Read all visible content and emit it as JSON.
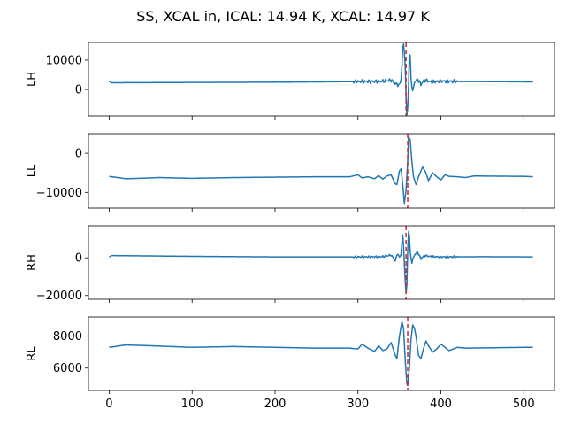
{
  "figure": {
    "title": "SS, XCAL in, ICAL: 14.94 K, XCAL: 14.97 K",
    "line_color": "#1f77b4",
    "marker_color": "#d62728"
  },
  "chart_data": [
    {
      "type": "line",
      "ylabel": "LH",
      "xlim": [
        -25,
        537
      ],
      "ylim": [
        -9000,
        16000
      ],
      "yticks": [
        0,
        10000
      ],
      "xticks": [
        0,
        100,
        200,
        300,
        400,
        500
      ],
      "show_xtick_labels": false,
      "baseline": {
        "start": 2300,
        "end": 2700
      },
      "peak_index": 358,
      "marker_x": 358,
      "keypoints": [
        [
          0,
          2800
        ],
        [
          3,
          2300
        ],
        [
          100,
          2400
        ],
        [
          200,
          2500
        ],
        [
          300,
          2700
        ],
        [
          330,
          2800
        ],
        [
          340,
          3200
        ],
        [
          345,
          2000
        ],
        [
          350,
          1500
        ],
        [
          352,
          3500
        ],
        [
          353,
          8000
        ],
        [
          354,
          14000
        ],
        [
          355,
          15000
        ],
        [
          356,
          13000
        ],
        [
          357,
          8000
        ],
        [
          358,
          -3000
        ],
        [
          359,
          -8500
        ],
        [
          360,
          -6000
        ],
        [
          361,
          1000
        ],
        [
          362,
          12000
        ],
        [
          363,
          11000
        ],
        [
          364,
          4000
        ],
        [
          366,
          -1000
        ],
        [
          368,
          2500
        ],
        [
          372,
          3500
        ],
        [
          376,
          1800
        ],
        [
          380,
          3200
        ],
        [
          390,
          2500
        ],
        [
          400,
          2900
        ],
        [
          420,
          2700
        ],
        [
          450,
          2700
        ],
        [
          511,
          2600
        ]
      ],
      "ripple": {
        "from": 295,
        "to": 420,
        "amp": 700
      }
    },
    {
      "type": "line",
      "ylabel": "LL",
      "xlim": [
        -25,
        537
      ],
      "ylim": [
        -14000,
        5000
      ],
      "yticks": [
        -10000,
        0
      ],
      "xticks": [
        0,
        100,
        200,
        300,
        400,
        500
      ],
      "show_xtick_labels": false,
      "peak_index": 360,
      "marker_x": 360,
      "keypoints": [
        [
          0,
          -5900
        ],
        [
          20,
          -6500
        ],
        [
          50,
          -6300
        ],
        [
          60,
          -6200
        ],
        [
          100,
          -6400
        ],
        [
          150,
          -6200
        ],
        [
          200,
          -6100
        ],
        [
          250,
          -6000
        ],
        [
          290,
          -6000
        ],
        [
          300,
          -5500
        ],
        [
          305,
          -6300
        ],
        [
          312,
          -6000
        ],
        [
          320,
          -6500
        ],
        [
          325,
          -5700
        ],
        [
          330,
          -6600
        ],
        [
          335,
          -5800
        ],
        [
          340,
          -5500
        ],
        [
          345,
          -7800
        ],
        [
          347,
          -8000
        ],
        [
          350,
          -4500
        ],
        [
          352,
          -4000
        ],
        [
          354,
          -8000
        ],
        [
          356,
          -12800
        ],
        [
          358,
          -9500
        ],
        [
          360,
          -2000
        ],
        [
          361,
          4200
        ],
        [
          363,
          3500
        ],
        [
          365,
          -2000
        ],
        [
          367,
          -6000
        ],
        [
          370,
          -8000
        ],
        [
          373,
          -6000
        ],
        [
          378,
          -3500
        ],
        [
          382,
          -5000
        ],
        [
          385,
          -7000
        ],
        [
          390,
          -5000
        ],
        [
          395,
          -6000
        ],
        [
          400,
          -6800
        ],
        [
          405,
          -5500
        ],
        [
          410,
          -5900
        ],
        [
          420,
          -6000
        ],
        [
          430,
          -6200
        ],
        [
          440,
          -5800
        ],
        [
          500,
          -5900
        ],
        [
          511,
          -6000
        ]
      ]
    },
    {
      "type": "line",
      "ylabel": "RH",
      "xlim": [
        -25,
        537
      ],
      "ylim": [
        -22000,
        17000
      ],
      "yticks": [
        -20000,
        0
      ],
      "xticks": [
        0,
        100,
        200,
        300,
        400,
        500
      ],
      "show_xtick_labels": false,
      "peak_index": 358,
      "marker_x": 358,
      "keypoints": [
        [
          0,
          500
        ],
        [
          3,
          1200
        ],
        [
          100,
          800
        ],
        [
          200,
          500
        ],
        [
          300,
          500
        ],
        [
          330,
          600
        ],
        [
          340,
          1500
        ],
        [
          345,
          -1500
        ],
        [
          348,
          2500
        ],
        [
          350,
          0
        ],
        [
          352,
          2000
        ],
        [
          353,
          8000
        ],
        [
          354,
          12000
        ],
        [
          355,
          6000
        ],
        [
          356,
          -3000
        ],
        [
          357,
          -12000
        ],
        [
          358,
          -19500
        ],
        [
          359,
          -14000
        ],
        [
          360,
          4000
        ],
        [
          361,
          14000
        ],
        [
          362,
          12000
        ],
        [
          363,
          3000
        ],
        [
          365,
          -2500
        ],
        [
          368,
          1500
        ],
        [
          372,
          3000
        ],
        [
          376,
          -500
        ],
        [
          380,
          1200
        ],
        [
          390,
          600
        ],
        [
          400,
          500
        ],
        [
          450,
          600
        ],
        [
          511,
          500
        ]
      ],
      "ripple": {
        "from": 295,
        "to": 420,
        "amp": 600
      }
    },
    {
      "type": "line",
      "ylabel": "RL",
      "xlim": [
        -25,
        537
      ],
      "ylim": [
        4600,
        9200
      ],
      "yticks": [
        6000,
        8000
      ],
      "xticks": [
        0,
        100,
        200,
        300,
        400,
        500
      ],
      "show_xtick_labels": true,
      "peak_index": 360,
      "marker_x": 360,
      "keypoints": [
        [
          0,
          7300
        ],
        [
          20,
          7450
        ],
        [
          50,
          7400
        ],
        [
          100,
          7300
        ],
        [
          150,
          7350
        ],
        [
          200,
          7300
        ],
        [
          250,
          7250
        ],
        [
          290,
          7250
        ],
        [
          300,
          7200
        ],
        [
          305,
          7500
        ],
        [
          312,
          7250
        ],
        [
          320,
          7050
        ],
        [
          325,
          7400
        ],
        [
          330,
          7100
        ],
        [
          335,
          7200
        ],
        [
          340,
          7600
        ],
        [
          345,
          6800
        ],
        [
          347,
          6600
        ],
        [
          350,
          8000
        ],
        [
          353,
          8900
        ],
        [
          355,
          8500
        ],
        [
          357,
          6500
        ],
        [
          359,
          5000
        ],
        [
          360,
          4900
        ],
        [
          362,
          6000
        ],
        [
          364,
          7800
        ],
        [
          366,
          8700
        ],
        [
          368,
          8500
        ],
        [
          370,
          8000
        ],
        [
          373,
          6800
        ],
        [
          376,
          6600
        ],
        [
          379,
          7200
        ],
        [
          382,
          7700
        ],
        [
          385,
          7400
        ],
        [
          390,
          7000
        ],
        [
          395,
          7200
        ],
        [
          400,
          7500
        ],
        [
          405,
          7300
        ],
        [
          410,
          7100
        ],
        [
          420,
          7300
        ],
        [
          430,
          7250
        ],
        [
          500,
          7300
        ],
        [
          511,
          7300
        ]
      ]
    }
  ]
}
